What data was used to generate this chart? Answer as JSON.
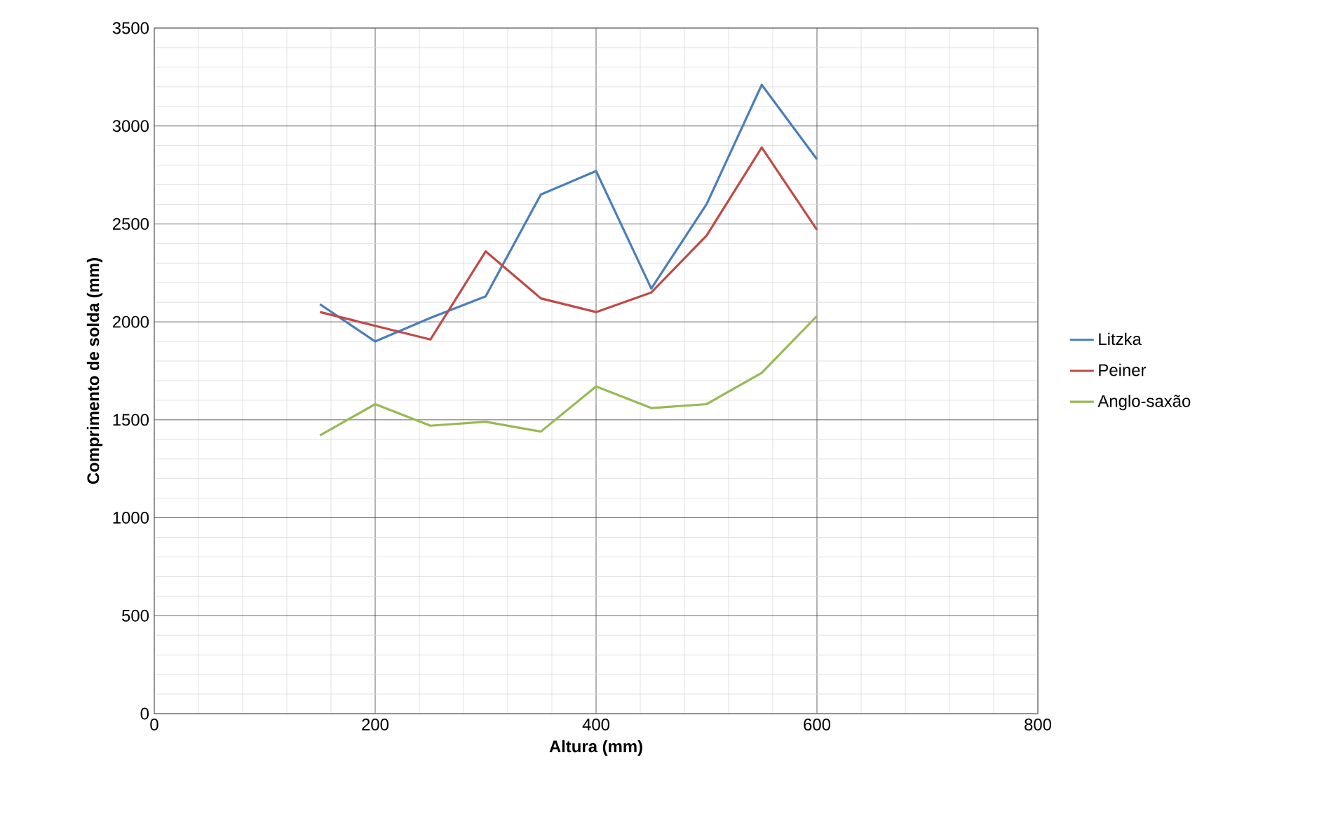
{
  "chart_data": {
    "type": "line",
    "xlabel": "Altura (mm)",
    "ylabel": "Comprimento de solda (mm)",
    "x": [
      150,
      200,
      250,
      300,
      350,
      400,
      450,
      500,
      550,
      600
    ],
    "series": [
      {
        "name": "Litzka",
        "color": "#4a7ebb",
        "values": [
          2090,
          1900,
          2020,
          2130,
          2650,
          2770,
          2170,
          2600,
          3210,
          2830
        ]
      },
      {
        "name": "Peiner",
        "color": "#be4b48",
        "values": [
          2050,
          1980,
          1910,
          2360,
          2120,
          2050,
          2150,
          2440,
          2890,
          2470
        ]
      },
      {
        "name": "Anglo-saxão",
        "color": "#98b954",
        "values": [
          1420,
          1580,
          1470,
          1490,
          1440,
          1670,
          1560,
          1580,
          1740,
          2030
        ]
      }
    ],
    "xlim": [
      0,
      800
    ],
    "xticks": [
      0,
      200,
      400,
      600,
      800
    ],
    "ylim": [
      0,
      3500
    ],
    "yticks": [
      0,
      500,
      1000,
      1500,
      2000,
      2500,
      3000,
      3500
    ],
    "grid": true,
    "legend": "right",
    "marker": "none",
    "line_style": "solid"
  }
}
